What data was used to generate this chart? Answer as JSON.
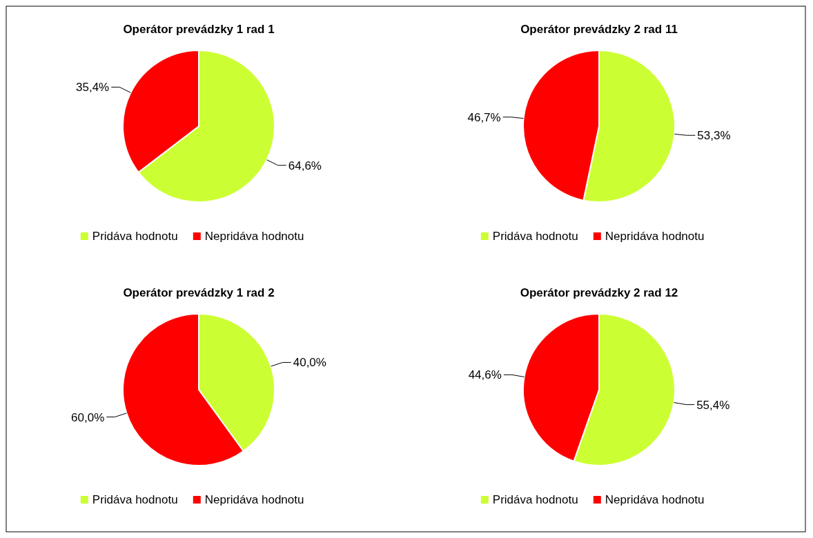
{
  "chart_data": [
    {
      "type": "pie",
      "title": "Operátor prevádzky 1 rad 1",
      "categories": [
        "Pridáva hodnotu",
        "Nepridáva hodnotu"
      ],
      "values": [
        64.6,
        35.4
      ],
      "colors": [
        "#ccff33",
        "#ff0000"
      ],
      "value_labels": [
        "64,6%",
        "35,4%"
      ],
      "legend": "bottom"
    },
    {
      "type": "pie",
      "title": "Operátor prevádzky 2 rad 11",
      "categories": [
        "Pridáva hodnotu",
        "Nepridáva hodnotu"
      ],
      "values": [
        53.3,
        46.7
      ],
      "colors": [
        "#ccff33",
        "#ff0000"
      ],
      "value_labels": [
        "53,3%",
        "46,7%"
      ],
      "legend": "bottom"
    },
    {
      "type": "pie",
      "title": "Operátor prevádzky 1 rad 2",
      "categories": [
        "Pridáva hodnotu",
        "Nepridáva hodnotu"
      ],
      "values": [
        40.0,
        60.0
      ],
      "colors": [
        "#ccff33",
        "#ff0000"
      ],
      "value_labels": [
        "40,0%",
        "60,0%"
      ],
      "legend": "bottom"
    },
    {
      "type": "pie",
      "title": "Operátor prevádzky 2 rad 12",
      "categories": [
        "Pridáva hodnotu",
        "Nepridáva hodnotu"
      ],
      "values": [
        55.4,
        44.6
      ],
      "colors": [
        "#ccff33",
        "#ff0000"
      ],
      "value_labels": [
        "55,4%",
        "44,6%"
      ],
      "legend": "bottom"
    }
  ]
}
